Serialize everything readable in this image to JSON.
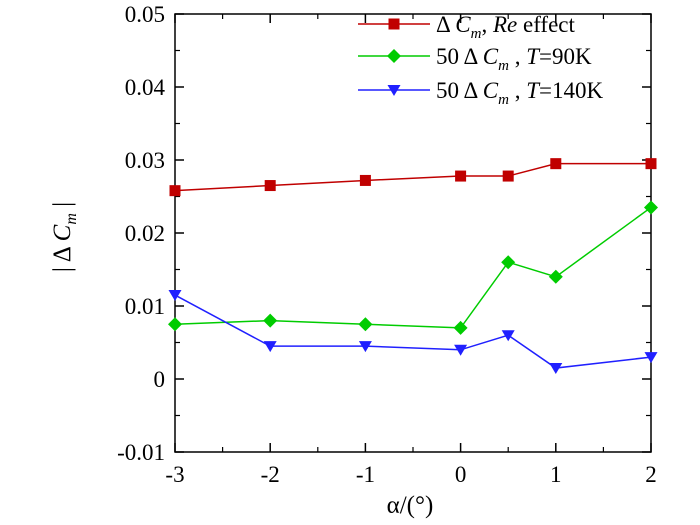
{
  "chart_data": {
    "type": "line",
    "title": "",
    "xlabel": "α/(°)",
    "ylabel": "| Δ C_m |",
    "xlim": [
      -3,
      2
    ],
    "ylim": [
      -0.01,
      0.05
    ],
    "xticks": [
      -3,
      -2,
      -1,
      0,
      1,
      2
    ],
    "xtick_labels": [
      "-3",
      "-2",
      "-1",
      "0",
      "1",
      "2"
    ],
    "yticks": [
      -0.01,
      0,
      0.01,
      0.02,
      0.03,
      0.04,
      0.05
    ],
    "ytick_labels": [
      "-0.01",
      "0",
      "0.01",
      "0.02",
      "0.03",
      "0.04",
      "0.05"
    ],
    "grid": false,
    "legend_position": "top-right",
    "x": [
      -3,
      -2,
      -1,
      0,
      0.5,
      1,
      2
    ],
    "series": [
      {
        "name": "Δ C_m , Re effect",
        "legend_parts": {
          "prefix": "Δ ",
          "c": "C",
          "sub": "m",
          "mid": ", ",
          "re": "Re",
          "suffix": " effect"
        },
        "color": "#c00000",
        "marker": "square",
        "values": [
          0.0258,
          0.0265,
          0.0272,
          0.0278,
          0.0278,
          0.0295,
          0.0295
        ]
      },
      {
        "name": "50 Δ C_m , T=90K",
        "legend_parts": {
          "prefix": "50 Δ ",
          "c": "C",
          "sub": "m",
          "mid": " , ",
          "t": "T",
          "suffix": "=90K"
        },
        "color": "#00cc00",
        "marker": "diamond",
        "values": [
          0.0075,
          0.008,
          0.0075,
          0.007,
          0.016,
          0.014,
          0.0235
        ]
      },
      {
        "name": "50 Δ C_m , T=140K",
        "legend_parts": {
          "prefix": "50 Δ ",
          "c": "C",
          "sub": "m",
          "mid": " , ",
          "t": "T",
          "suffix": "=140K"
        },
        "color": "#2020ff",
        "marker": "triangle-down",
        "values": [
          0.0115,
          0.0045,
          0.0045,
          0.004,
          0.006,
          0.0015,
          0.003
        ]
      }
    ]
  }
}
